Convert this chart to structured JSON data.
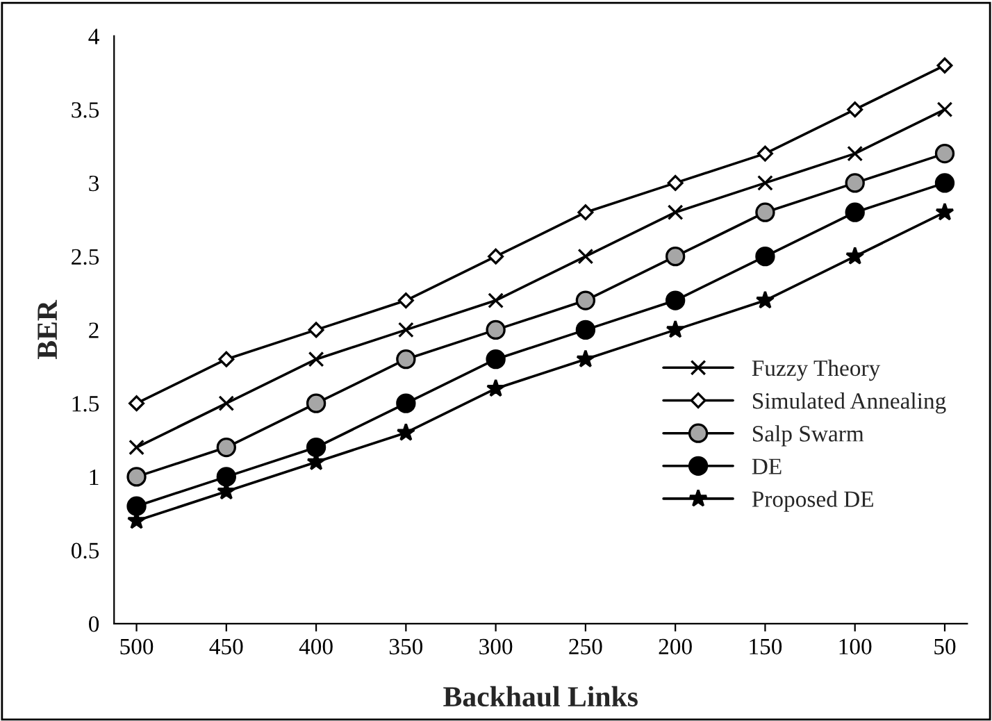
{
  "chart_data": {
    "type": "line",
    "xlabel": "Backhaul Links",
    "ylabel": "BER",
    "categories": [
      "500",
      "450",
      "400",
      "350",
      "300",
      "250",
      "200",
      "150",
      "100",
      "50"
    ],
    "ylim": [
      0,
      4
    ],
    "yticks": [
      0,
      0.5,
      1,
      1.5,
      2,
      2.5,
      3,
      3.5,
      4
    ],
    "grid": false,
    "legend": "right",
    "line_style": "solid",
    "series": [
      {
        "name": "Fuzzy Theory",
        "color": "#000000",
        "marker": "cross",
        "values": [
          1.2,
          1.5,
          1.8,
          2.0,
          2.2,
          2.5,
          2.8,
          3.0,
          3.2,
          3.5
        ]
      },
      {
        "name": "Simulated Annealing",
        "color": "#ffffff",
        "marker": "diamond",
        "values": [
          1.5,
          1.8,
          2.0,
          2.2,
          2.5,
          2.8,
          3.0,
          3.2,
          3.5,
          3.8
        ]
      },
      {
        "name": "Salp Swarm",
        "color": "#a6a6a6",
        "marker": "circle",
        "values": [
          1.0,
          1.2,
          1.5,
          1.8,
          2.0,
          2.2,
          2.5,
          2.8,
          3.0,
          3.2
        ]
      },
      {
        "name": "DE",
        "color": "#000000",
        "marker": "circle",
        "values": [
          0.8,
          1.0,
          1.2,
          1.5,
          1.8,
          2.0,
          2.2,
          2.5,
          2.8,
          3.0
        ]
      },
      {
        "name": "Proposed DE",
        "color": "#000000",
        "marker": "star",
        "values": [
          0.7,
          0.9,
          1.1,
          1.3,
          1.6,
          1.8,
          2.0,
          2.2,
          2.5,
          2.8
        ]
      }
    ]
  }
}
